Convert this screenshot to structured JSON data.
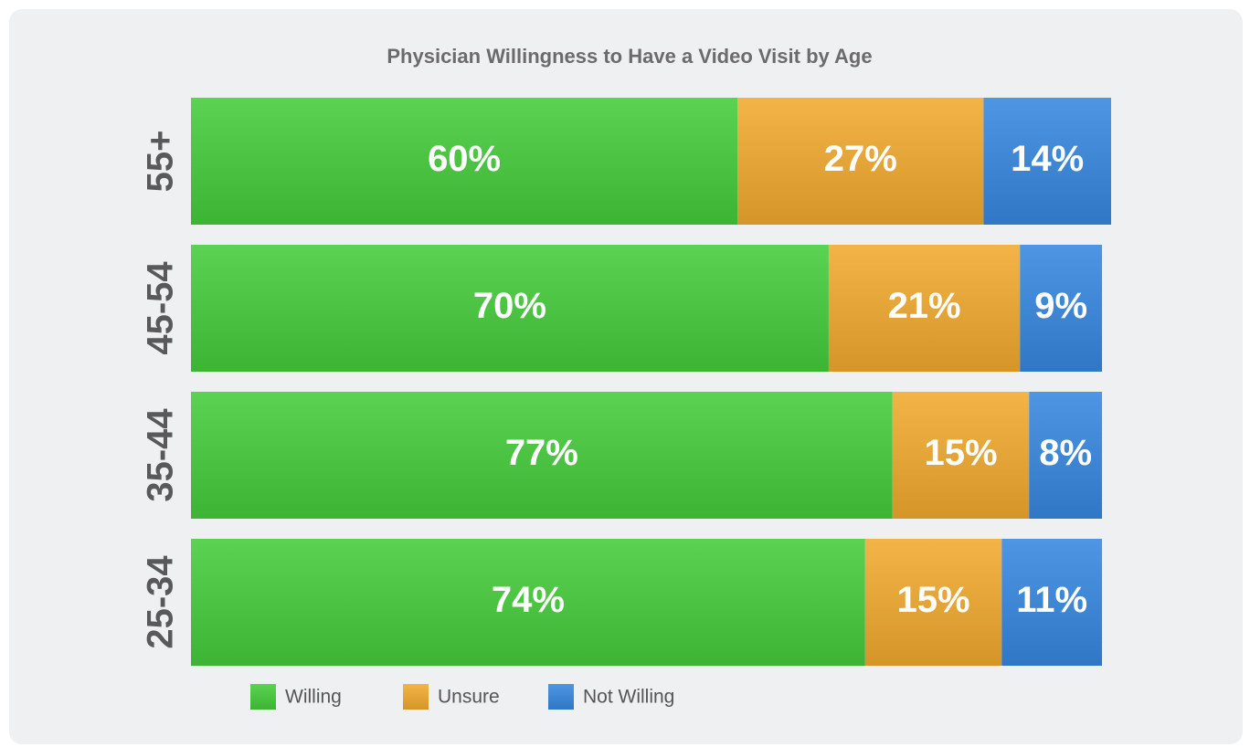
{
  "chart_data": {
    "type": "stacked-bar",
    "orientation": "horizontal",
    "title": "Physician Willingness to Have a Video Visit by Age",
    "categories": [
      "55+",
      "45-54",
      "35-44",
      "25-34"
    ],
    "series": [
      {
        "name": "Willing",
        "color": "#45cc3a",
        "values": [
          60,
          70,
          77,
          74
        ],
        "value_labels": [
          "60%",
          "70%",
          "77%",
          "74%"
        ]
      },
      {
        "name": "Unsure",
        "color": "#f2aa2e",
        "values": [
          27,
          21,
          15,
          15
        ],
        "value_labels": [
          "27%",
          "21%",
          "15%",
          "15%"
        ]
      },
      {
        "name": "Not Willing",
        "color": "#3688e0",
        "values": [
          14,
          9,
          8,
          11
        ],
        "value_labels": [
          "14%",
          "9%",
          "8%",
          "11%"
        ]
      }
    ],
    "xlim": [
      0,
      101
    ],
    "legend": "bottom-left"
  }
}
